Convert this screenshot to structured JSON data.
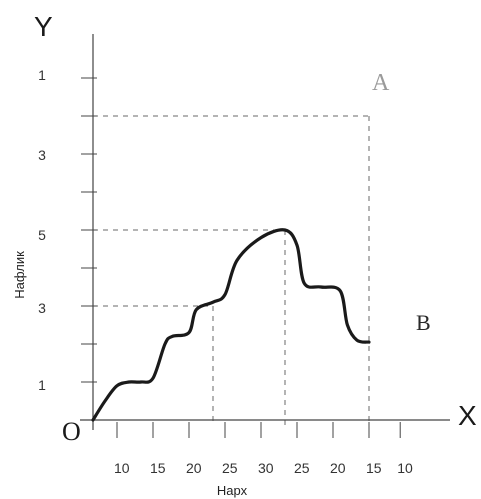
{
  "chart_data": {
    "type": "line",
    "title": "",
    "axis_letters": {
      "x": "X",
      "y": "Y"
    },
    "origin_label": "O",
    "xlabel": "Нарх",
    "ylabel": "Нафлик",
    "x_tick_labels": [
      "10",
      "15",
      "20",
      "25",
      "30",
      "25",
      "20",
      "15",
      "10"
    ],
    "y_tick_labels": [
      "1",
      "3",
      "5",
      "3",
      "1"
    ],
    "point_labels": {
      "a": "A",
      "b": "B"
    },
    "series": [
      {
        "points": [
          [
            0.0,
            0.0
          ],
          [
            0.5,
            0.5
          ],
          [
            1.0,
            0.9
          ],
          [
            1.5,
            1.0
          ],
          [
            2.0,
            1.0
          ],
          [
            2.5,
            1.1
          ],
          [
            3.0,
            2.0
          ],
          [
            3.3,
            2.2
          ],
          [
            4.0,
            2.3
          ],
          [
            4.3,
            2.9
          ],
          [
            5.0,
            3.1
          ],
          [
            5.5,
            3.3
          ],
          [
            6.0,
            4.2
          ],
          [
            7.0,
            4.8
          ],
          [
            8.0,
            5.0
          ],
          [
            8.5,
            4.6
          ],
          [
            8.8,
            3.6
          ],
          [
            9.5,
            3.5
          ],
          [
            10.3,
            3.4
          ],
          [
            10.6,
            2.5
          ],
          [
            11.0,
            2.1
          ],
          [
            11.5,
            2.05
          ]
        ]
      }
    ],
    "x_range": [
      0,
      12.5
    ],
    "y_range": [
      0,
      9.5
    ],
    "grid": false,
    "guide_lines": [
      {
        "y": 3.0,
        "x": 5.0
      },
      {
        "y": 5.0,
        "x": 8.0
      },
      {
        "y": 8.0,
        "x": 11.5
      }
    ],
    "colors": {
      "line": "#1a1a1a",
      "axis": "#444444",
      "guide": "#6a6a6a"
    }
  }
}
